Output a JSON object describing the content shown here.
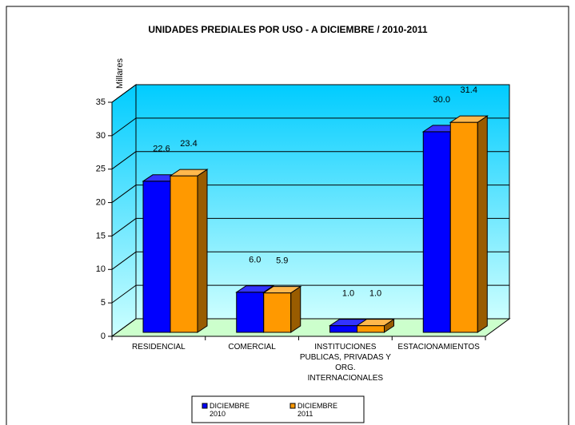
{
  "chart_data": {
    "type": "bar3d",
    "title": "UNIDADES PREDIALES POR USO - A DICIEMBRE / 2010-2011",
    "y_label": "Millares",
    "categories": [
      "RESIDENCIAL",
      "COMERCIAL",
      "INSTITUCIONES PUBLICAS, PRIVADAS Y ORG. INTERNACIONALES",
      "ESTACIONAMIENTOS"
    ],
    "series": [
      {
        "name": "DICIEMBRE 2010",
        "color": "#0000ff",
        "values": [
          22.6,
          6.0,
          1.0,
          30.0
        ],
        "value_labels": [
          "22.6",
          "6.0",
          "1.0",
          "30.0"
        ]
      },
      {
        "name": "DICIEMBRE 2011",
        "color": "#ff9900",
        "values": [
          23.4,
          5.9,
          1.0,
          31.4
        ],
        "value_labels": [
          "23.4",
          "5.9",
          "1.0",
          "31.4"
        ]
      }
    ],
    "ylim": [
      0,
      35
    ],
    "yticks": [
      0,
      5,
      10,
      15,
      20,
      25,
      30,
      35
    ],
    "grid": true,
    "legend": "bottom"
  }
}
